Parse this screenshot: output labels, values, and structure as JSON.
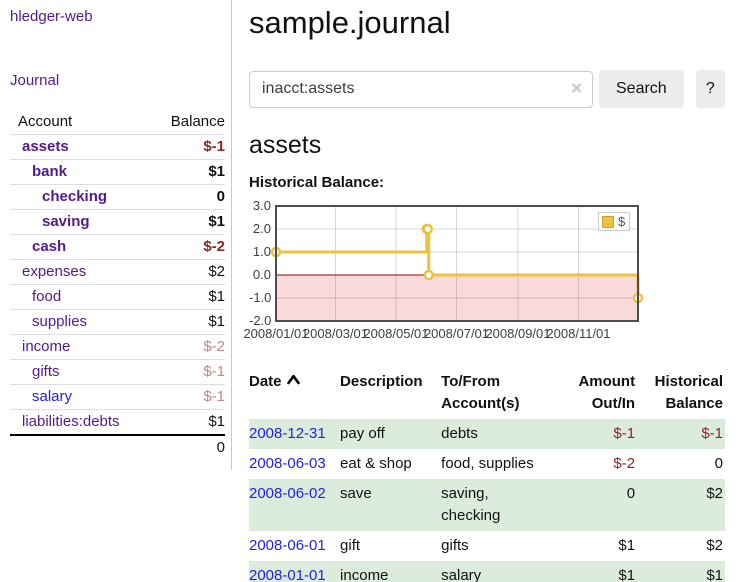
{
  "colors": {
    "link_visited": "#551a8b",
    "link_unvisited": "#2323dd",
    "negative": "#8c2626",
    "negative_dim": "#c28686",
    "row_stripe": "#dcecdc",
    "series_gold": "#edc240",
    "negative_region_fill": "#f9d9d9",
    "zero_line": "#a33535",
    "grid_line": "#dddddd",
    "plot_border": "#4d4d4d"
  },
  "sidebar": {
    "app_title": "hledger-web",
    "journal_label": "Journal",
    "accounts_header": {
      "account": "Account",
      "balance": "Balance"
    },
    "accounts": [
      {
        "name": "assets",
        "level": 1,
        "bold": true,
        "balance": "$-1"
      },
      {
        "name": "bank",
        "level": 2,
        "bold": true,
        "balance": "$1"
      },
      {
        "name": "checking",
        "level": 3,
        "bold": true,
        "balance": "0"
      },
      {
        "name": "saving",
        "level": 3,
        "bold": true,
        "balance": "$1"
      },
      {
        "name": "cash",
        "level": 2,
        "bold": true,
        "balance": "$-2"
      },
      {
        "name": "expenses",
        "level": 1,
        "bold": false,
        "balance": "$2"
      },
      {
        "name": "food",
        "level": 2,
        "bold": false,
        "balance": "$1"
      },
      {
        "name": "supplies",
        "level": 2,
        "bold": false,
        "balance": "$1"
      },
      {
        "name": "income",
        "level": 1,
        "bold": false,
        "balance": "$-2"
      },
      {
        "name": "gifts",
        "level": 2,
        "bold": false,
        "balance": "$-1"
      },
      {
        "name": "salary",
        "level": 2,
        "bold": false,
        "balance": "$-1",
        "unvisited": true
      },
      {
        "name": "liabilities:debts",
        "level": 1,
        "bold": false,
        "balance": "$1"
      }
    ],
    "total": "0"
  },
  "main": {
    "title": "sample.journal",
    "search": {
      "value": "inacct:assets",
      "clear_icon": "✕",
      "button_label": "Search",
      "help_label": "?"
    },
    "account_heading": "assets",
    "chart_label": "Historical Balance:"
  },
  "chart_data": {
    "type": "line",
    "step": true,
    "title": "Historical Balance",
    "series": [
      {
        "name": "$",
        "points": [
          [
            "2008-01-01",
            1
          ],
          [
            "2008-06-01",
            2
          ],
          [
            "2008-06-02",
            2
          ],
          [
            "2008-06-03",
            0
          ],
          [
            "2008-12-31",
            -1
          ]
        ]
      }
    ],
    "x_range": [
      "2008-01-01",
      "2008-12-31"
    ],
    "ylim": [
      -2,
      3
    ],
    "y_ticks": [
      {
        "v": 3,
        "label": "3.0"
      },
      {
        "v": 2,
        "label": "2.0"
      },
      {
        "v": 1,
        "label": "1.0"
      },
      {
        "v": 0,
        "label": "0.0"
      },
      {
        "v": -1,
        "label": "-1.0"
      },
      {
        "v": -2,
        "label": "-2.0"
      }
    ],
    "x_ticks": [
      {
        "date": "2008-01-01",
        "label": "2008/01/01"
      },
      {
        "date": "2008-03-01",
        "label": "2008/03/01"
      },
      {
        "date": "2008-05-01",
        "label": "2008/05/01"
      },
      {
        "date": "2008-07-01",
        "label": "2008/07/01"
      },
      {
        "date": "2008-09-01",
        "label": "2008/09/01"
      },
      {
        "date": "2008-11-01",
        "label": "2008/11/01"
      }
    ],
    "negative_region": {
      "from": 0,
      "to": -2
    },
    "grid": true,
    "legend_position": "top-right",
    "legend_label": "$"
  },
  "register": {
    "columns": [
      "Date",
      "Description",
      "To/From Account(s)",
      "Amount Out/In",
      "Historical Balance"
    ],
    "sort": {
      "column": "Date",
      "direction": "ascending"
    },
    "rows": [
      {
        "date": "2008-12-31",
        "description": "pay off",
        "accounts": "debts",
        "amount": "$-1",
        "balance": "$-1"
      },
      {
        "date": "2008-06-03",
        "description": "eat & shop",
        "accounts": "food, supplies",
        "amount": "$-2",
        "balance": "0"
      },
      {
        "date": "2008-06-02",
        "description": "save",
        "accounts": "saving, checking",
        "amount": "0",
        "balance": "$2"
      },
      {
        "date": "2008-06-01",
        "description": "gift",
        "accounts": "gifts",
        "amount": "$1",
        "balance": "$2"
      },
      {
        "date": "2008-01-01",
        "description": "income",
        "accounts": "salary",
        "amount": "$1",
        "balance": "$1"
      }
    ]
  }
}
